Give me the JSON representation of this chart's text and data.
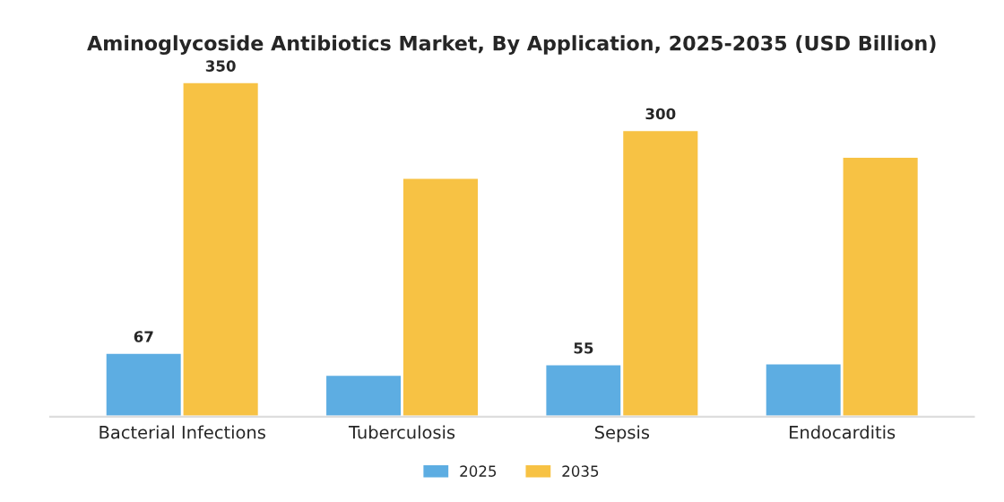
{
  "chart_data": {
    "type": "bar",
    "title": "Aminoglycoside Antibiotics Market, By Application, 2025-2035 (USD Billion)",
    "categories": [
      "Bacterial Infections",
      "Tuberculosis",
      "Sepsis",
      "Endocarditis"
    ],
    "series": [
      {
        "name": "2025",
        "color": "#5dade2",
        "values": [
          67,
          44,
          55,
          56
        ],
        "value_labels": [
          "67",
          null,
          "55",
          null
        ]
      },
      {
        "name": "2035",
        "color": "#f7c244",
        "values": [
          350,
          250,
          300,
          272
        ],
        "value_labels": [
          "350",
          null,
          "300",
          null
        ]
      }
    ],
    "grid": false,
    "legend": "bottom",
    "tick_labels": "x"
  }
}
